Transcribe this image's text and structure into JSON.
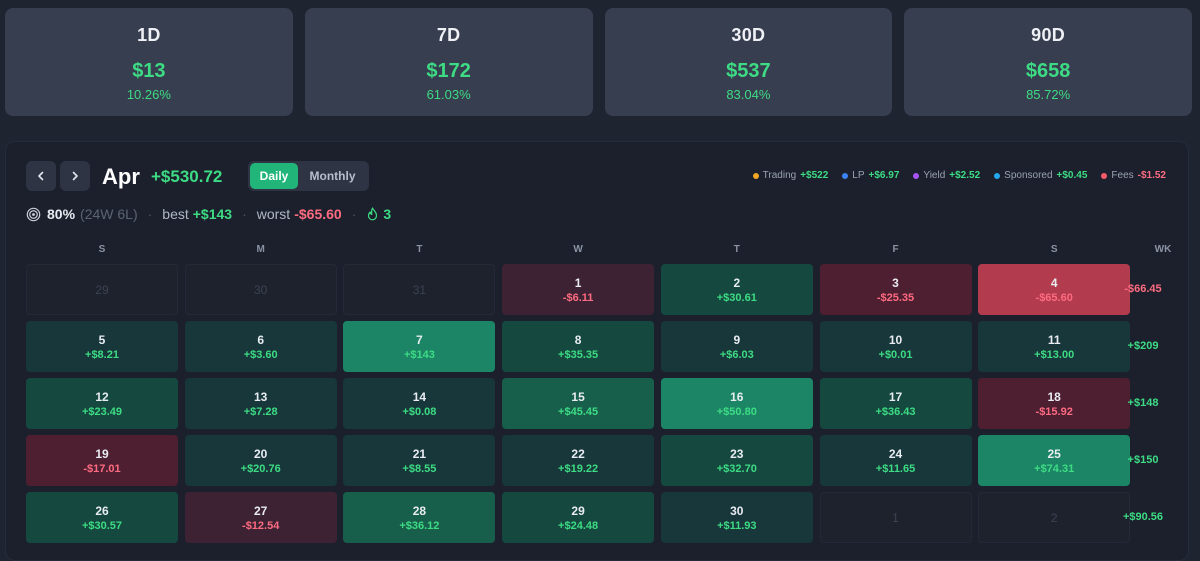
{
  "stats": [
    {
      "label": "1D",
      "value": "$13",
      "pct": "10.26%"
    },
    {
      "label": "7D",
      "value": "$172",
      "pct": "61.03%"
    },
    {
      "label": "30D",
      "value": "$537",
      "pct": "83.04%"
    },
    {
      "label": "90D",
      "value": "$658",
      "pct": "85.72%"
    }
  ],
  "calendar": {
    "month": "Apr",
    "total": "+$530.72",
    "view_daily": "Daily",
    "view_monthly": "Monthly",
    "prev_icon": "chevron-left-icon",
    "next_icon": "chevron-right-icon"
  },
  "legend": [
    {
      "label": "Trading",
      "value": "+$522",
      "color": "#f5a524",
      "value_color": "#3ddc84"
    },
    {
      "label": "LP",
      "value": "+$6.97",
      "color": "#3b82f6",
      "value_color": "#3ddc84"
    },
    {
      "label": "Yield",
      "value": "+$2.52",
      "color": "#a855f7",
      "value_color": "#3ddc84"
    },
    {
      "label": "Sponsored",
      "value": "+$0.45",
      "color": "#22a7f0",
      "value_color": "#3ddc84"
    },
    {
      "label": "Fees",
      "value": "-$1.52",
      "color": "#ff5a6e",
      "value_color": "#ff6b81"
    }
  ],
  "summary": {
    "winrate": "80%",
    "wl": "(24W 6L)",
    "sep": "·",
    "best_label": "best",
    "best_value": "+$143",
    "worst_label": "worst",
    "worst_value": "-$65.60",
    "streak": "3"
  },
  "weekdays": [
    "S",
    "M",
    "T",
    "W",
    "T",
    "F",
    "S"
  ],
  "wk_header": "WK",
  "weeks": [
    {
      "total": "-$66.45",
      "total_sign": "neg",
      "days": [
        {
          "day": "29",
          "value": "",
          "tone": "empty"
        },
        {
          "day": "30",
          "value": "",
          "tone": "empty"
        },
        {
          "day": "31",
          "value": "",
          "tone": "empty"
        },
        {
          "day": "1",
          "value": "-$6.11",
          "tone": "neg1"
        },
        {
          "day": "2",
          "value": "+$30.61",
          "tone": "pos2"
        },
        {
          "day": "3",
          "value": "-$25.35",
          "tone": "neg2"
        },
        {
          "day": "4",
          "value": "-$65.60",
          "tone": "neg4"
        }
      ]
    },
    {
      "total": "+$209",
      "total_sign": "pos",
      "days": [
        {
          "day": "5",
          "value": "+$8.21",
          "tone": "pos1"
        },
        {
          "day": "6",
          "value": "+$3.60",
          "tone": "pos1"
        },
        {
          "day": "7",
          "value": "+$143",
          "tone": "pos4"
        },
        {
          "day": "8",
          "value": "+$35.35",
          "tone": "pos2"
        },
        {
          "day": "9",
          "value": "+$6.03",
          "tone": "pos1"
        },
        {
          "day": "10",
          "value": "+$0.01",
          "tone": "pos1"
        },
        {
          "day": "11",
          "value": "+$13.00",
          "tone": "pos1"
        }
      ]
    },
    {
      "total": "+$148",
      "total_sign": "pos",
      "days": [
        {
          "day": "12",
          "value": "+$23.49",
          "tone": "pos2"
        },
        {
          "day": "13",
          "value": "+$7.28",
          "tone": "pos1"
        },
        {
          "day": "14",
          "value": "+$0.08",
          "tone": "pos1"
        },
        {
          "day": "15",
          "value": "+$45.45",
          "tone": "pos3"
        },
        {
          "day": "16",
          "value": "+$50.80",
          "tone": "pos4"
        },
        {
          "day": "17",
          "value": "+$36.43",
          "tone": "pos2"
        },
        {
          "day": "18",
          "value": "-$15.92",
          "tone": "neg2"
        }
      ]
    },
    {
      "total": "+$150",
      "total_sign": "pos",
      "days": [
        {
          "day": "19",
          "value": "-$17.01",
          "tone": "neg2"
        },
        {
          "day": "20",
          "value": "+$20.76",
          "tone": "pos1"
        },
        {
          "day": "21",
          "value": "+$8.55",
          "tone": "pos1"
        },
        {
          "day": "22",
          "value": "+$19.22",
          "tone": "pos1"
        },
        {
          "day": "23",
          "value": "+$32.70",
          "tone": "pos2"
        },
        {
          "day": "24",
          "value": "+$11.65",
          "tone": "pos1"
        },
        {
          "day": "25",
          "value": "+$74.31",
          "tone": "pos4"
        }
      ]
    },
    {
      "total": "+$90.56",
      "total_sign": "pos",
      "days": [
        {
          "day": "26",
          "value": "+$30.57",
          "tone": "pos2"
        },
        {
          "day": "27",
          "value": "-$12.54",
          "tone": "neg1"
        },
        {
          "day": "28",
          "value": "+$36.12",
          "tone": "pos3"
        },
        {
          "day": "29",
          "value": "+$24.48",
          "tone": "pos2"
        },
        {
          "day": "30",
          "value": "+$11.93",
          "tone": "pos1"
        },
        {
          "day": "1",
          "value": "",
          "tone": "empty"
        },
        {
          "day": "2",
          "value": "",
          "tone": "empty"
        }
      ]
    }
  ],
  "colors": {
    "positive": "#3ddc84",
    "negative": "#ff6b81",
    "pos1": "#17373a",
    "pos2": "#15493f",
    "pos3": "#175e4b",
    "pos4": "#1c8566",
    "neg1": "#3c2233",
    "neg2": "#4e1e31",
    "neg4": "#b23b4e"
  }
}
